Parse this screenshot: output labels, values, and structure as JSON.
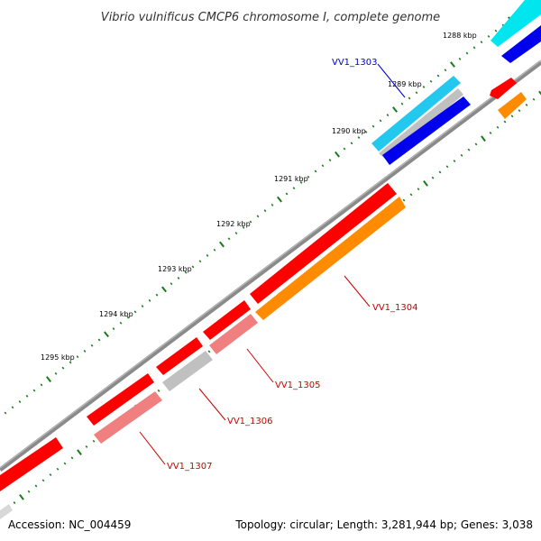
{
  "title": "Vibrio vulnificus CMCP6 chromosome I, complete genome",
  "footer": {
    "accession": "Accession: NC_004459",
    "summary": "Topology: circular; Length: 3,281,944 bp; Genes: 3,038"
  },
  "scale_labels": [
    "1288 kbp",
    "1289 kbp",
    "1290 kbp",
    "1291 kbp",
    "1292 kbp",
    "1293 kbp",
    "1294 kbp",
    "1295 kbp"
  ],
  "gene_labels": [
    {
      "id": "VV1_1303",
      "color": "#0000cc"
    },
    {
      "id": "VV1_1304",
      "color": "#cc0000"
    },
    {
      "id": "VV1_1305",
      "color": "#cc0000"
    },
    {
      "id": "VV1_1306",
      "color": "#cc0000"
    },
    {
      "id": "VV1_1307",
      "color": "#cc0000"
    }
  ],
  "colors": {
    "backbone": "#808080",
    "tick": "#1a7a1a",
    "red": "#ff0000",
    "pink": "#f08080",
    "orange": "#ff8c00",
    "blue": "#0000ee",
    "cyan": "#00e5ee",
    "lightblue": "#22c8ee",
    "gray": "#c0c0c0"
  }
}
